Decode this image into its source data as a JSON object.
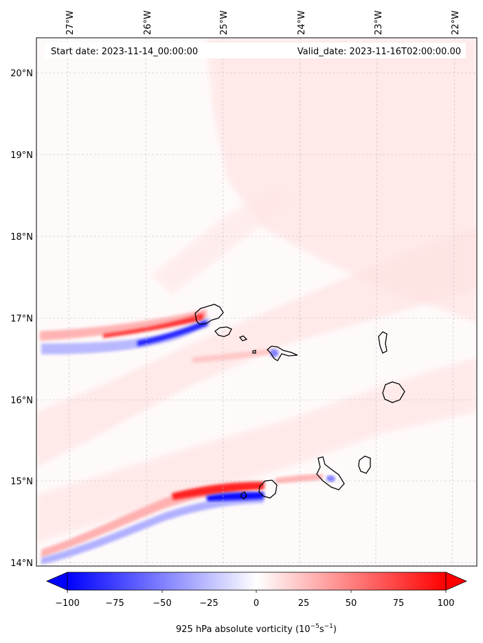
{
  "header": {
    "start_date": "Start date: 2023-11-14_00:00:00",
    "valid_date": "Valid_date: 2023-11-16T02:00:00.00"
  },
  "map": {
    "lon_labels": [
      "27°W",
      "26°W",
      "25°W",
      "24°W",
      "23°W",
      "22°W"
    ],
    "lat_labels": [
      "20°N",
      "19°N",
      "18°N",
      "17°N",
      "16°N",
      "15°N",
      "14°N"
    ],
    "gridlines": true
  },
  "colorbar": {
    "tick_labels": [
      "−100",
      "−75",
      "−50",
      "−25",
      "0",
      "25",
      "50",
      "75",
      "100"
    ],
    "label_main": "925 hPa absolute vorticity (10",
    "label_exp1": "−5",
    "label_mid": "s",
    "label_exp2": "−1",
    "label_end": ")",
    "min": -100,
    "max": 100,
    "colors": {
      "negative": "#0000ff",
      "zero": "#ffffff",
      "positive": "#ff0000"
    }
  }
}
